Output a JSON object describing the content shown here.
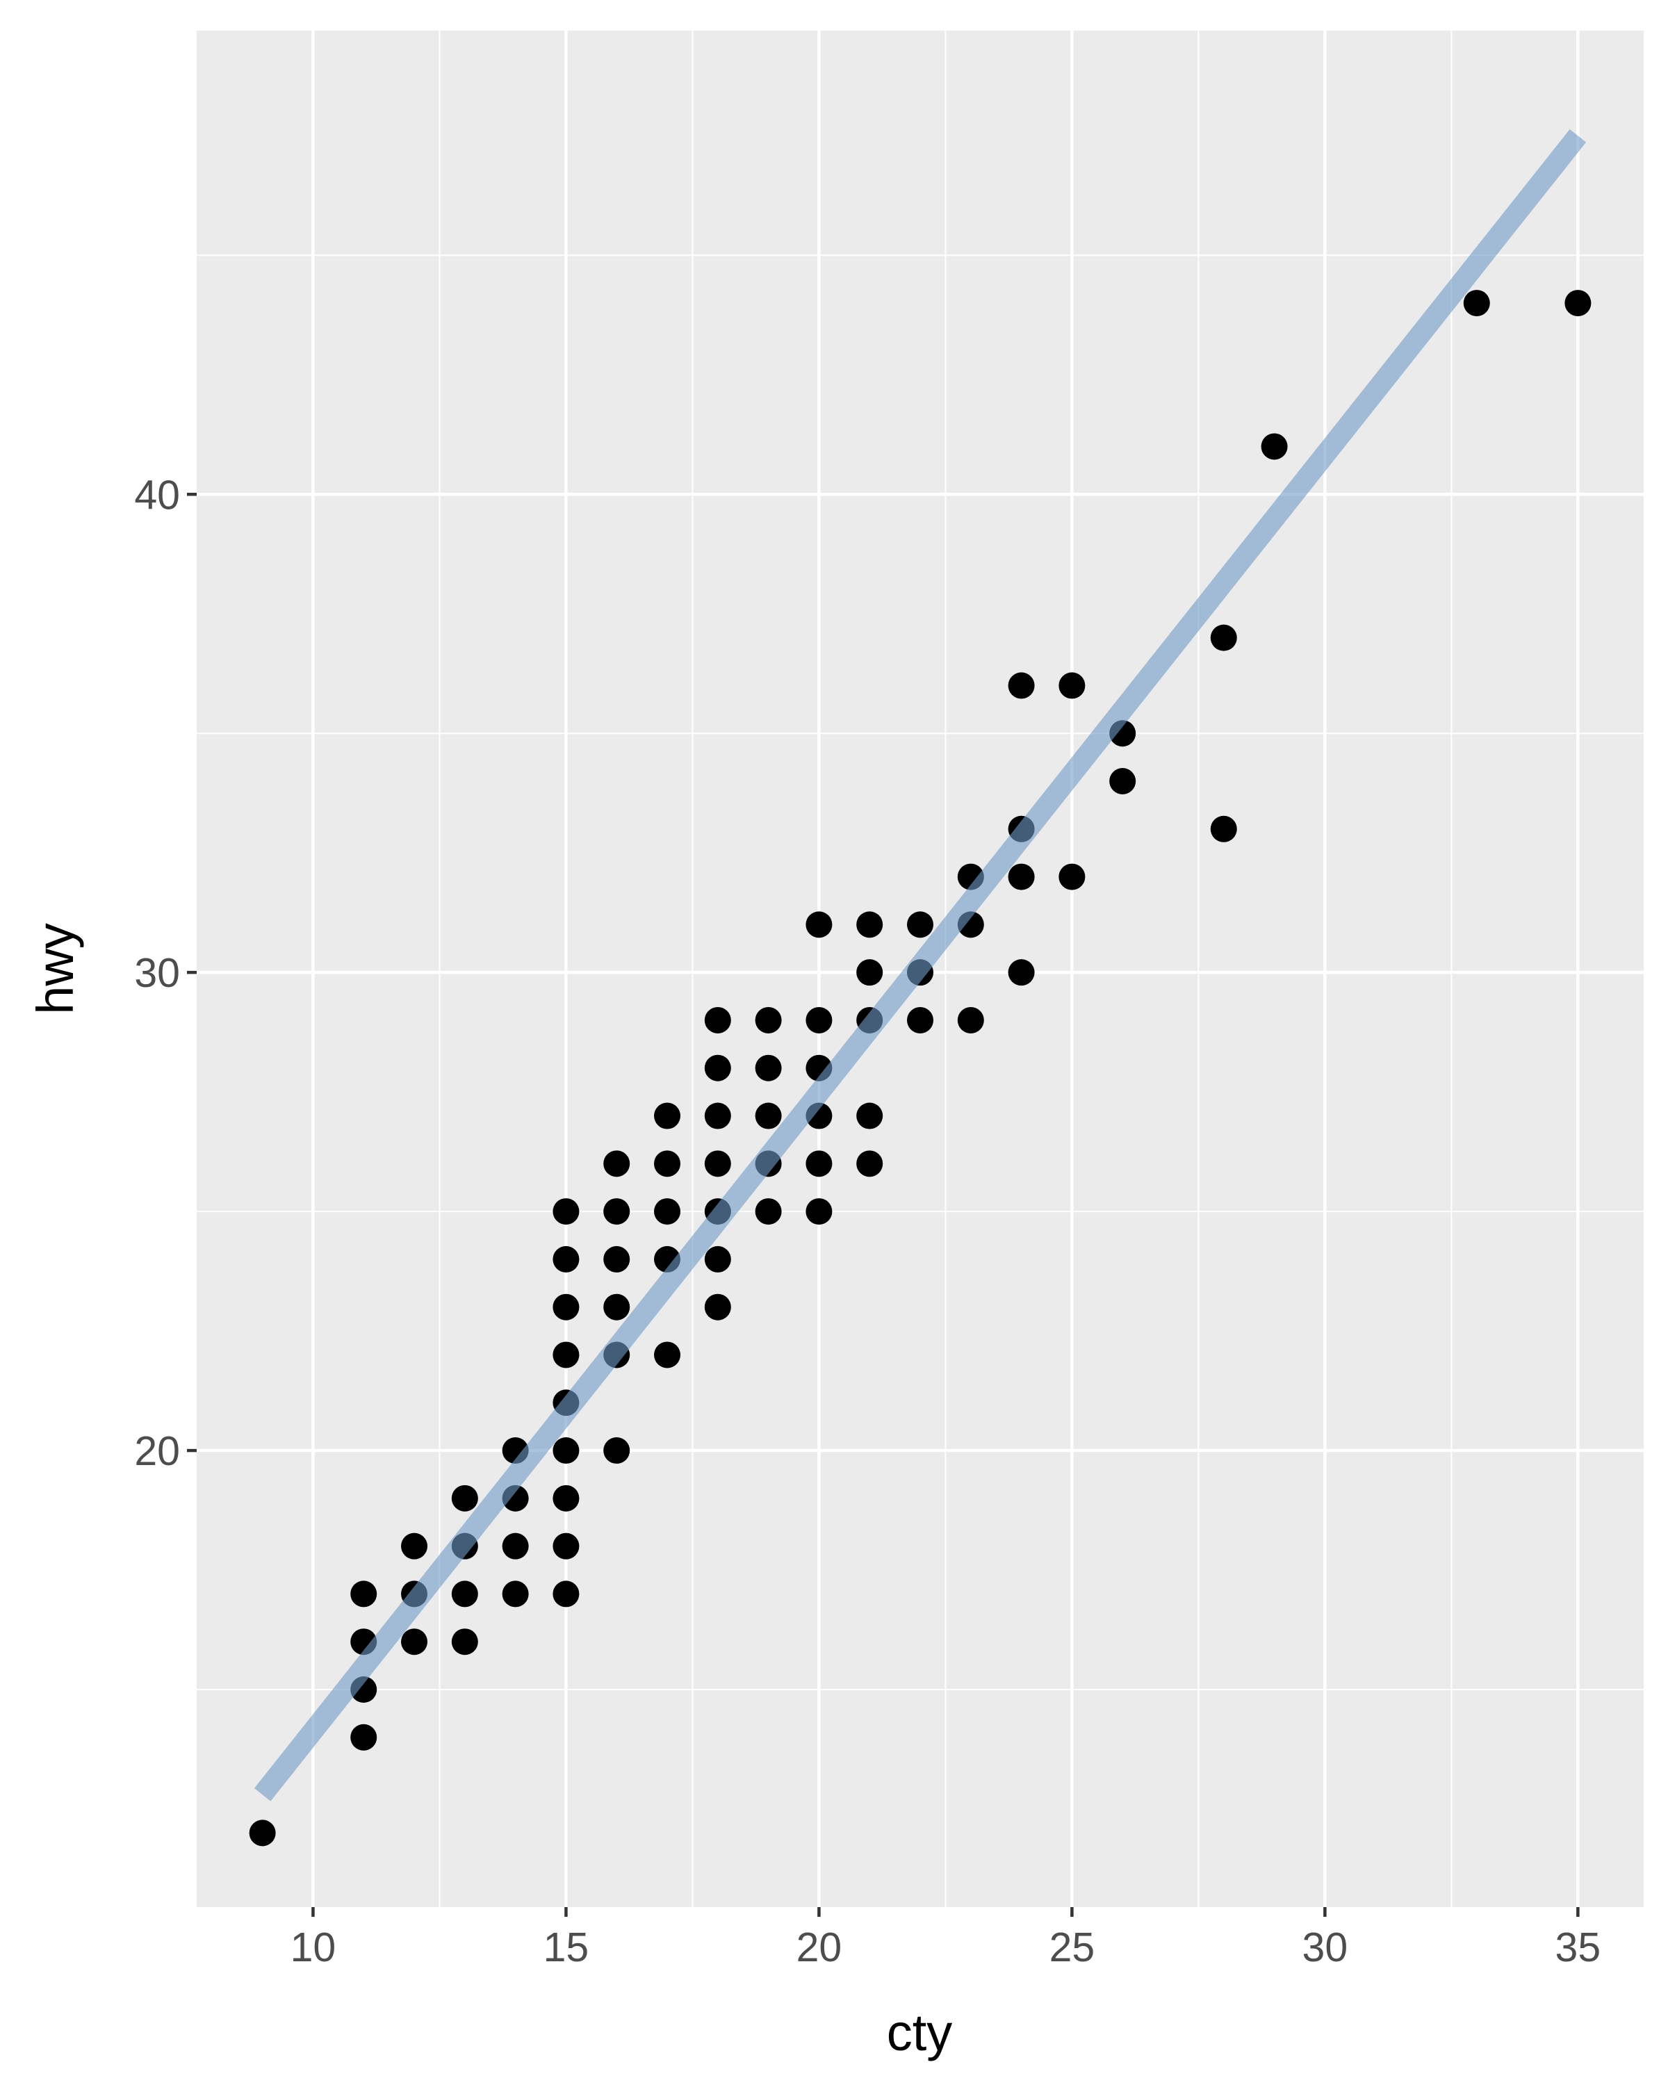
{
  "chart_data": {
    "type": "scatter",
    "title": "",
    "xlabel": "cty",
    "ylabel": "hwy",
    "xlim": [
      7.7,
      36.3
    ],
    "ylim": [
      10.45,
      49.7
    ],
    "x_ticks": [
      10,
      15,
      20,
      25,
      30,
      35
    ],
    "x_tick_labels": [
      "10",
      "15",
      "20",
      "25",
      "30",
      "35"
    ],
    "y_ticks": [
      20,
      30,
      40
    ],
    "y_tick_labels": [
      "20",
      "30",
      "40"
    ],
    "grid": true,
    "legend": "none",
    "background_color": "#EBEBEB",
    "point_color": "#000000",
    "points": [
      {
        "x": 9,
        "y": 12
      },
      {
        "x": 11,
        "y": 14
      },
      {
        "x": 11,
        "y": 15
      },
      {
        "x": 11,
        "y": 16
      },
      {
        "x": 11,
        "y": 17
      },
      {
        "x": 12,
        "y": 16
      },
      {
        "x": 12,
        "y": 17
      },
      {
        "x": 12,
        "y": 18
      },
      {
        "x": 13,
        "y": 16
      },
      {
        "x": 13,
        "y": 17
      },
      {
        "x": 13,
        "y": 18
      },
      {
        "x": 13,
        "y": 19
      },
      {
        "x": 14,
        "y": 17
      },
      {
        "x": 14,
        "y": 18
      },
      {
        "x": 14,
        "y": 19
      },
      {
        "x": 14,
        "y": 20
      },
      {
        "x": 15,
        "y": 17
      },
      {
        "x": 15,
        "y": 18
      },
      {
        "x": 15,
        "y": 19
      },
      {
        "x": 15,
        "y": 20
      },
      {
        "x": 15,
        "y": 21
      },
      {
        "x": 15,
        "y": 22
      },
      {
        "x": 15,
        "y": 23
      },
      {
        "x": 15,
        "y": 24
      },
      {
        "x": 15,
        "y": 25
      },
      {
        "x": 16,
        "y": 20
      },
      {
        "x": 16,
        "y": 22
      },
      {
        "x": 16,
        "y": 23
      },
      {
        "x": 16,
        "y": 24
      },
      {
        "x": 16,
        "y": 25
      },
      {
        "x": 16,
        "y": 26
      },
      {
        "x": 17,
        "y": 22
      },
      {
        "x": 17,
        "y": 24
      },
      {
        "x": 17,
        "y": 25
      },
      {
        "x": 17,
        "y": 26
      },
      {
        "x": 17,
        "y": 27
      },
      {
        "x": 18,
        "y": 23
      },
      {
        "x": 18,
        "y": 24
      },
      {
        "x": 18,
        "y": 25
      },
      {
        "x": 18,
        "y": 26
      },
      {
        "x": 18,
        "y": 27
      },
      {
        "x": 18,
        "y": 28
      },
      {
        "x": 18,
        "y": 29
      },
      {
        "x": 19,
        "y": 25
      },
      {
        "x": 19,
        "y": 26
      },
      {
        "x": 19,
        "y": 27
      },
      {
        "x": 19,
        "y": 28
      },
      {
        "x": 19,
        "y": 29
      },
      {
        "x": 20,
        "y": 25
      },
      {
        "x": 20,
        "y": 26
      },
      {
        "x": 20,
        "y": 27
      },
      {
        "x": 20,
        "y": 28
      },
      {
        "x": 20,
        "y": 29
      },
      {
        "x": 20,
        "y": 31
      },
      {
        "x": 21,
        "y": 26
      },
      {
        "x": 21,
        "y": 27
      },
      {
        "x": 21,
        "y": 29
      },
      {
        "x": 21,
        "y": 30
      },
      {
        "x": 21,
        "y": 31
      },
      {
        "x": 22,
        "y": 29
      },
      {
        "x": 22,
        "y": 30
      },
      {
        "x": 22,
        "y": 31
      },
      {
        "x": 23,
        "y": 29
      },
      {
        "x": 23,
        "y": 31
      },
      {
        "x": 23,
        "y": 32
      },
      {
        "x": 24,
        "y": 30
      },
      {
        "x": 24,
        "y": 32
      },
      {
        "x": 24,
        "y": 33
      },
      {
        "x": 24,
        "y": 36
      },
      {
        "x": 25,
        "y": 32
      },
      {
        "x": 25,
        "y": 36
      },
      {
        "x": 26,
        "y": 34
      },
      {
        "x": 26,
        "y": 35
      },
      {
        "x": 28,
        "y": 33
      },
      {
        "x": 28,
        "y": 37
      },
      {
        "x": 29,
        "y": 41
      },
      {
        "x": 33,
        "y": 44
      },
      {
        "x": 35,
        "y": 44
      }
    ],
    "fit_line": {
      "color": "#6F99C7",
      "opacity": 0.6,
      "points": [
        {
          "x": 9,
          "y": 12.8
        },
        {
          "x": 35,
          "y": 47.5
        }
      ]
    }
  }
}
